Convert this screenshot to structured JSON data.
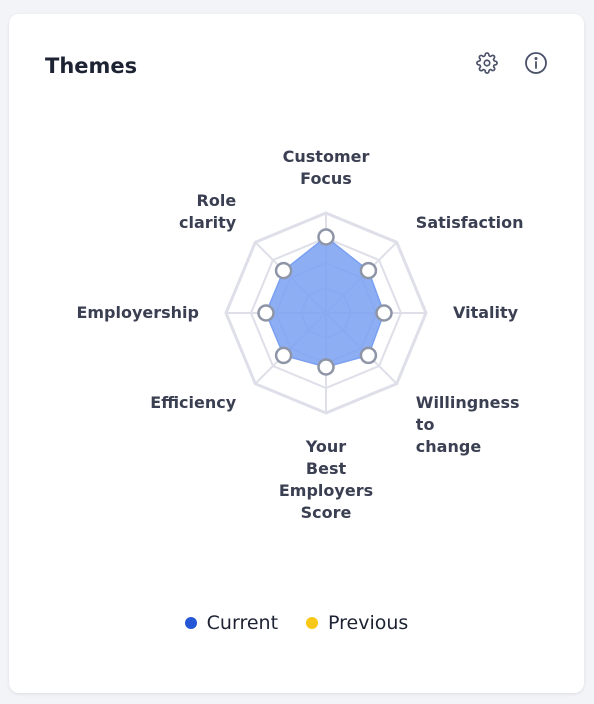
{
  "card": {
    "title": "Themes",
    "icons": {
      "settings": "gear-icon",
      "info": "info-icon"
    }
  },
  "chart_data": {
    "type": "radar",
    "axes": [
      [
        "Customer",
        "Focus"
      ],
      [
        "Satisfaction"
      ],
      [
        "Vitality"
      ],
      [
        "Willingness",
        "to",
        "change"
      ],
      [
        "Your",
        "Best",
        "Employers",
        "Score"
      ],
      [
        "Efficiency"
      ],
      [
        "Employership"
      ],
      [
        "Role",
        "clarity"
      ]
    ],
    "range": [
      0,
      5
    ],
    "rings": 4,
    "series": [
      {
        "name": "Current",
        "color": "#2456d6",
        "fill": "#7aa0f2",
        "values": [
          3.8,
          3.0,
          2.9,
          3.0,
          2.7,
          3.0,
          3.0,
          3.0
        ]
      },
      {
        "name": "Previous",
        "color": "#f7c815",
        "values": []
      }
    ],
    "legend": "bottom"
  }
}
